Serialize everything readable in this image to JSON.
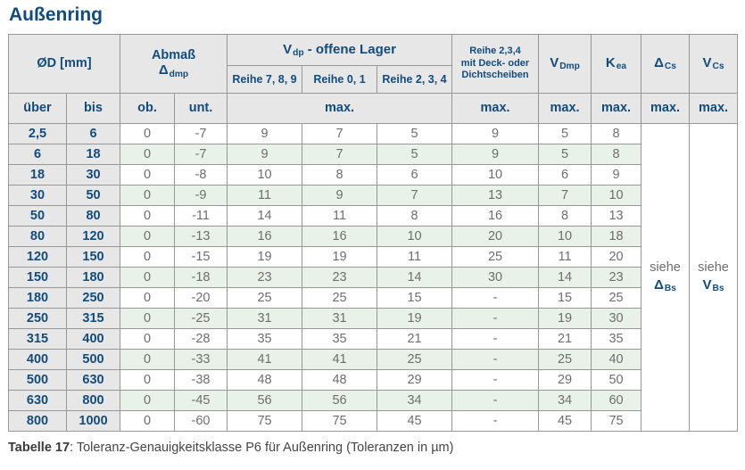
{
  "title": "Außenring",
  "colors": {
    "accent_blue": "#134b7d",
    "header_gray": "#e7e7e7",
    "row_green": "#e9f2e9",
    "border_gray": "#979797",
    "data_text_gray": "#6e6e6e"
  },
  "header": {
    "od": "ØD [mm]",
    "abmass": "Abmaß",
    "abmass_sym": "Δ",
    "abmass_sub": "dmp",
    "vdp_base": "V",
    "vdp_sub": "dp",
    "vdp_rest": " -  offene Lager",
    "reihe789": "Reihe 7, 8, 9",
    "reihe01": "Reihe 0, 1",
    "reihe234": "Reihe 2, 3, 4",
    "deck_lines": [
      "Reihe 2,3,4",
      "mit Deck- oder",
      "Dichtscheiben"
    ],
    "vdmp_base": "V",
    "vdmp_sub": "Dmp",
    "kea_base": "K",
    "kea_sub": "ea",
    "dcs_base": "Δ",
    "dcs_sub": "Cs",
    "vcs_base": "V",
    "vcs_sub": "Cs",
    "uber": "über",
    "bis": "bis",
    "ob": "ob.",
    "unt": "unt.",
    "max": "max."
  },
  "see": {
    "siehe": "siehe",
    "dbs_base": "Δ",
    "dbs_sub": "Bs",
    "vbs_base": "V",
    "vbs_sub": "Bs"
  },
  "rows": [
    {
      "uber": "2,5",
      "bis": "6",
      "ob": "0",
      "unt": "-7",
      "r789": "9",
      "r01": "7",
      "r234": "5",
      "deck": "9",
      "vdmp": "5",
      "kea": "8"
    },
    {
      "uber": "6",
      "bis": "18",
      "ob": "0",
      "unt": "-7",
      "r789": "9",
      "r01": "7",
      "r234": "5",
      "deck": "9",
      "vdmp": "5",
      "kea": "8"
    },
    {
      "uber": "18",
      "bis": "30",
      "ob": "0",
      "unt": "-8",
      "r789": "10",
      "r01": "8",
      "r234": "6",
      "deck": "10",
      "vdmp": "6",
      "kea": "9"
    },
    {
      "uber": "30",
      "bis": "50",
      "ob": "0",
      "unt": "-9",
      "r789": "11",
      "r01": "9",
      "r234": "7",
      "deck": "13",
      "vdmp": "7",
      "kea": "10"
    },
    {
      "uber": "50",
      "bis": "80",
      "ob": "0",
      "unt": "-11",
      "r789": "14",
      "r01": "11",
      "r234": "8",
      "deck": "16",
      "vdmp": "8",
      "kea": "13"
    },
    {
      "uber": "80",
      "bis": "120",
      "ob": "0",
      "unt": "-13",
      "r789": "16",
      "r01": "16",
      "r234": "10",
      "deck": "20",
      "vdmp": "10",
      "kea": "18"
    },
    {
      "uber": "120",
      "bis": "150",
      "ob": "0",
      "unt": "-15",
      "r789": "19",
      "r01": "19",
      "r234": "11",
      "deck": "25",
      "vdmp": "11",
      "kea": "20"
    },
    {
      "uber": "150",
      "bis": "180",
      "ob": "0",
      "unt": "-18",
      "r789": "23",
      "r01": "23",
      "r234": "14",
      "deck": "30",
      "vdmp": "14",
      "kea": "23"
    },
    {
      "uber": "180",
      "bis": "250",
      "ob": "0",
      "unt": "-20",
      "r789": "25",
      "r01": "25",
      "r234": "15",
      "deck": "-",
      "vdmp": "15",
      "kea": "25"
    },
    {
      "uber": "250",
      "bis": "315",
      "ob": "0",
      "unt": "-25",
      "r789": "31",
      "r01": "31",
      "r234": "19",
      "deck": "-",
      "vdmp": "19",
      "kea": "30"
    },
    {
      "uber": "315",
      "bis": "400",
      "ob": "0",
      "unt": "-28",
      "r789": "35",
      "r01": "35",
      "r234": "21",
      "deck": "-",
      "vdmp": "21",
      "kea": "35"
    },
    {
      "uber": "400",
      "bis": "500",
      "ob": "0",
      "unt": "-33",
      "r789": "41",
      "r01": "41",
      "r234": "25",
      "deck": "-",
      "vdmp": "25",
      "kea": "40"
    },
    {
      "uber": "500",
      "bis": "630",
      "ob": "0",
      "unt": "-38",
      "r789": "48",
      "r01": "48",
      "r234": "29",
      "deck": "-",
      "vdmp": "29",
      "kea": "50"
    },
    {
      "uber": "630",
      "bis": "800",
      "ob": "0",
      "unt": "-45",
      "r789": "56",
      "r01": "56",
      "r234": "34",
      "deck": "-",
      "vdmp": "34",
      "kea": "60"
    },
    {
      "uber": "800",
      "bis": "1000",
      "ob": "0",
      "unt": "-60",
      "r789": "75",
      "r01": "75",
      "r234": "45",
      "deck": "-",
      "vdmp": "45",
      "kea": "75"
    }
  ],
  "caption": {
    "label": "Tabelle 17",
    "text": ": Toleranz-Genauigkeitsklasse P6 für Außenring (Toleranzen in µm)"
  }
}
